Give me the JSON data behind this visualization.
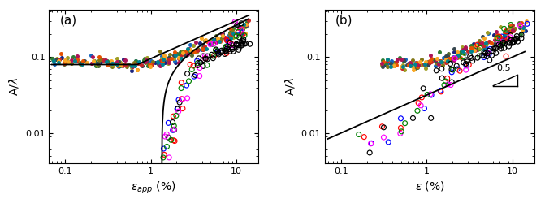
{
  "panel_a_label": "(a)",
  "panel_b_label": "(b)",
  "xlabel_a": "$\\varepsilon_{app}$ (%)",
  "xlabel_b": "$\\varepsilon$ (%)",
  "ylabel": "A/$\\lambda$",
  "xlim_a": [
    0.06,
    20
  ],
  "xlim_b": [
    0.06,
    20
  ],
  "ylim_a": [
    0.003,
    0.45
  ],
  "ylim_b": [
    0.003,
    0.45
  ],
  "solid_colors": [
    "#556B2F",
    "#1a237e",
    "#1565c0",
    "#2e7d32",
    "#827717",
    "#9e9d24",
    "#37474f",
    "#c62828",
    "#e65100",
    "#ad1457",
    "#f9a825",
    "#00838f",
    "#000000",
    "#4a148c",
    "#bf360c"
  ],
  "open_colors": [
    "#0000FF",
    "#FF0000",
    "#000000",
    "#FF00FF",
    "#008000"
  ],
  "tick_label_size": 8,
  "axis_label_size": 10,
  "panel_label_size": 11
}
